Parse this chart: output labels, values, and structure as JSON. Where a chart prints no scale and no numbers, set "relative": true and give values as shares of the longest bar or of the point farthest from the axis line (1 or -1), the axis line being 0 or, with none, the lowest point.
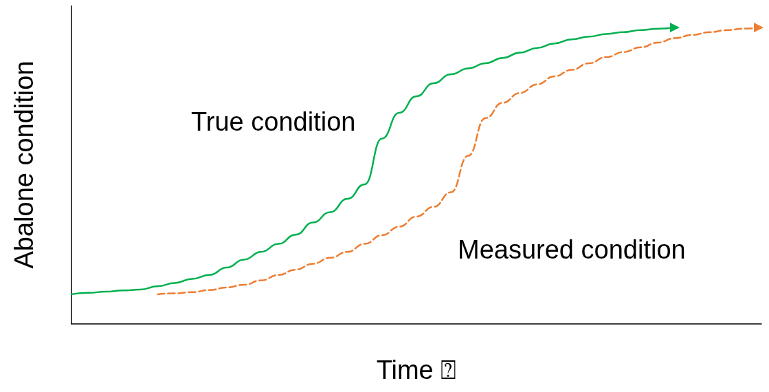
{
  "chart_data": {
    "type": "line",
    "relative": true,
    "xlabel": "Time ⍰",
    "ylabel": "Abalone condition",
    "categories": [
      null,
      null,
      null,
      null,
      null,
      null,
      null,
      null,
      null,
      null,
      null,
      null,
      null,
      null,
      null,
      null,
      null,
      null,
      null,
      null,
      null,
      null,
      null,
      null,
      null,
      null,
      null,
      null,
      null,
      null,
      null,
      null,
      null,
      null,
      null,
      null,
      null,
      null,
      null,
      null,
      null
    ],
    "series": [
      {
        "name": "True condition",
        "color": "#00b050",
        "line_style": "solid",
        "values": [
          0.1,
          0.105,
          0.109,
          0.113,
          0.116,
          0.127,
          0.138,
          0.152,
          0.165,
          0.19,
          0.217,
          0.243,
          0.27,
          0.301,
          0.342,
          0.377,
          0.422,
          0.471,
          0.625,
          0.712,
          0.768,
          0.812,
          0.842,
          0.862,
          0.879,
          0.897,
          0.915,
          0.931,
          0.946,
          0.96,
          0.969,
          0.978,
          0.984,
          0.991,
          0.996,
          1.0,
          null,
          null,
          null,
          null,
          null
        ]
      },
      {
        "name": "Measured condition",
        "color": "#ed7d31",
        "line_style": "dashed",
        "values": [
          null,
          null,
          null,
          null,
          null,
          0.1,
          0.103,
          0.107,
          0.114,
          0.123,
          0.132,
          0.147,
          0.165,
          0.183,
          0.203,
          0.223,
          0.243,
          0.27,
          0.299,
          0.328,
          0.362,
          0.395,
          0.444,
          0.567,
          0.694,
          0.746,
          0.779,
          0.808,
          0.835,
          0.857,
          0.879,
          0.9,
          0.917,
          0.933,
          0.949,
          0.964,
          0.975,
          0.984,
          0.991,
          0.996,
          1.0
        ]
      }
    ],
    "legend": false,
    "grid": false
  }
}
